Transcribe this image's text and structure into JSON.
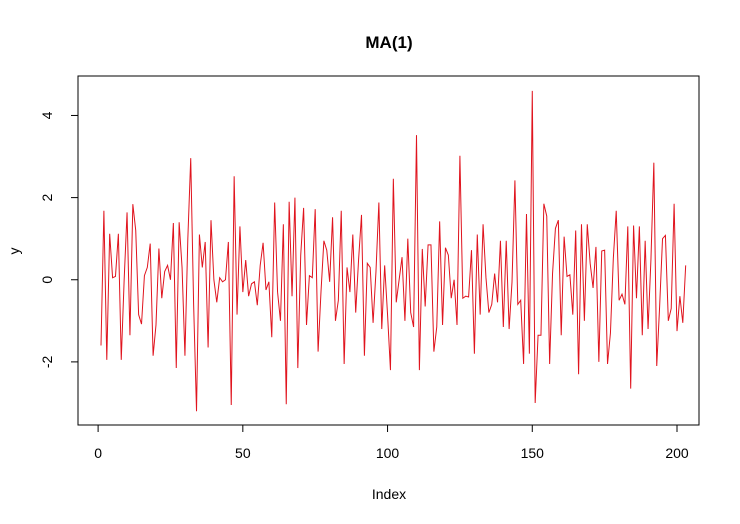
{
  "chart_data": {
    "type": "line",
    "title": "MA(1)",
    "xlabel": "Index",
    "ylabel": "y",
    "xlim": [
      1,
      200
    ],
    "ylim": [
      -3.22,
      4.62
    ],
    "x_ticks": [
      0,
      50,
      100,
      150,
      200
    ],
    "y_ticks": [
      -2,
      0,
      2,
      4
    ],
    "grid": false,
    "series": [
      {
        "color": "#e0141e",
        "values": [
          -1.6,
          1.68,
          -1.95,
          1.12,
          0.05,
          0.08,
          1.12,
          -1.95,
          0.0,
          1.64,
          -1.35,
          1.84,
          1.2,
          -0.85,
          -1.08,
          0.1,
          0.3,
          0.88,
          -1.85,
          -1.1,
          0.76,
          -0.45,
          0.2,
          0.35,
          0.0,
          1.38,
          -2.15,
          1.4,
          0.3,
          -1.85,
          1.0,
          2.96,
          -0.6,
          -3.2,
          1.1,
          0.3,
          0.92,
          -1.65,
          1.45,
          0.0,
          -0.55,
          0.05,
          -0.05,
          0.0,
          0.92,
          -3.05,
          2.52,
          -0.85,
          1.3,
          -0.3,
          0.48,
          -0.4,
          -0.1,
          -0.05,
          -0.62,
          0.35,
          0.9,
          -0.25,
          -0.05,
          -1.4,
          1.88,
          -0.3,
          -1.0,
          1.35,
          -3.03,
          1.9,
          -0.4,
          2.0,
          -2.15,
          0.6,
          1.75,
          -1.1,
          0.1,
          0.05,
          1.72,
          -1.75,
          -0.3,
          0.95,
          0.72,
          -0.05,
          1.52,
          -1.0,
          -0.5,
          1.68,
          -2.05,
          0.3,
          -0.3,
          1.1,
          -0.8,
          0.5,
          1.58,
          -1.85,
          0.4,
          0.3,
          -1.05,
          0.2,
          1.88,
          -1.2,
          0.35,
          -0.85,
          -2.2,
          2.46,
          -0.55,
          0.0,
          0.55,
          -1.0,
          1.0,
          -0.8,
          -1.15,
          3.52,
          -2.2,
          0.75,
          -0.65,
          0.85,
          0.85,
          -1.75,
          -1.15,
          1.42,
          -1.1,
          0.78,
          0.6,
          -0.45,
          0.0,
          -1.1,
          3.02,
          -0.45,
          -0.4,
          -0.42,
          0.72,
          -1.8,
          1.1,
          -0.85,
          1.35,
          0.05,
          -0.8,
          -0.6,
          0.15,
          -0.55,
          0.95,
          -1.15,
          0.95,
          -1.2,
          -0.05,
          2.42,
          -0.6,
          -0.5,
          -2.05,
          1.6,
          -1.8,
          4.6,
          -3.0,
          -1.35,
          -1.35,
          1.85,
          1.55,
          -2.05,
          0.15,
          1.25,
          1.45,
          -1.35,
          1.05,
          0.08,
          0.12,
          -0.85,
          1.2,
          -2.3,
          1.35,
          -1.0,
          1.35,
          0.4,
          -0.2,
          0.8,
          -2.0,
          0.7,
          0.72,
          -2.05,
          -1.3,
          0.52,
          1.68,
          -0.5,
          -0.35,
          -0.6,
          1.3,
          -2.65,
          1.32,
          -0.45,
          1.3,
          -1.35,
          0.95,
          -1.2,
          0.5,
          2.85,
          -2.1,
          -0.65,
          1.0,
          1.08,
          -1.0,
          -0.7,
          1.85,
          -1.25,
          -0.4,
          -1.05,
          0.35
        ]
      }
    ]
  }
}
